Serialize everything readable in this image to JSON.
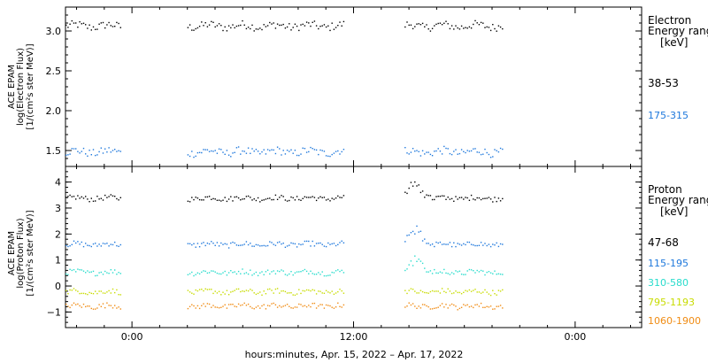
{
  "chart_data": [
    {
      "type": "scatter",
      "panel": "electron",
      "ylabel_lines": [
        "ACE EPAM",
        "log(Electron Flux)",
        "[1/(cm²s ster MeV)]"
      ],
      "ylim": [
        1.3,
        3.3
      ],
      "yticks": [
        "1.5",
        "2.0",
        "2.5",
        "3.0"
      ],
      "ytick_values": [
        1.5,
        2.0,
        2.5,
        3.0
      ],
      "legend_title_lines": [
        "Electron",
        "Energy ranges",
        "[keV]"
      ],
      "series": [
        {
          "name": "38-53",
          "color": "#000000",
          "level": 3.07,
          "segments": [
            [
              -0.3,
              -0.05
            ],
            [
              0.25,
              0.96
            ],
            [
              1.23,
              1.67
            ]
          ]
        },
        {
          "name": "175-315",
          "color": "#1e78dc",
          "level": 1.49,
          "segments": [
            [
              -0.3,
              -0.05
            ],
            [
              0.25,
              0.96
            ],
            [
              1.23,
              1.67
            ]
          ]
        }
      ]
    },
    {
      "type": "scatter",
      "panel": "proton",
      "ylabel_lines": [
        "ACE EPAM",
        "log(Proton Flux)",
        "[1/(cm²s ster MeV)]"
      ],
      "ylim": [
        -1.6,
        4.6
      ],
      "yticks": [
        "−1",
        "0",
        "1",
        "2",
        "3",
        "4"
      ],
      "ytick_values": [
        -1,
        0,
        1,
        2,
        3,
        4
      ],
      "legend_title_lines": [
        "Proton",
        "Energy ranges",
        "[keV]"
      ],
      "series": [
        {
          "name": "47-68",
          "color": "#000000",
          "level": 3.4,
          "segments": [
            [
              -0.3,
              -0.05
            ],
            [
              0.25,
              0.96
            ],
            [
              1.23,
              1.67
            ]
          ]
        },
        {
          "name": "115-195",
          "color": "#1e78dc",
          "level": 1.62,
          "segments": [
            [
              -0.3,
              -0.05
            ],
            [
              0.25,
              0.96
            ],
            [
              1.23,
              1.67
            ]
          ]
        },
        {
          "name": "310-580",
          "color": "#28dccc",
          "level": 0.55,
          "segments": [
            [
              -0.3,
              -0.05
            ],
            [
              0.25,
              0.96
            ],
            [
              1.23,
              1.67
            ]
          ]
        },
        {
          "name": "795-1193",
          "color": "#c8dc00",
          "level": -0.2,
          "segments": [
            [
              -0.3,
              -0.05
            ],
            [
              0.25,
              0.96
            ],
            [
              1.23,
              1.67
            ]
          ]
        },
        {
          "name": "1060-1900",
          "color": "#f08c14",
          "level": -0.75,
          "segments": [
            [
              -0.3,
              -0.05
            ],
            [
              0.25,
              0.96
            ],
            [
              1.23,
              1.67
            ]
          ]
        }
      ]
    }
  ],
  "x_axis": {
    "xlim": [
      -0.3,
      2.3
    ],
    "ticks": [
      {
        "value": 0,
        "label": "0:00"
      },
      {
        "value": 1,
        "label": "12:00"
      },
      {
        "value": 2,
        "label": "0:00"
      }
    ],
    "minor_step": 0.125,
    "label": "hours:minutes, Apr. 15, 2022 – Apr. 17, 2022"
  }
}
